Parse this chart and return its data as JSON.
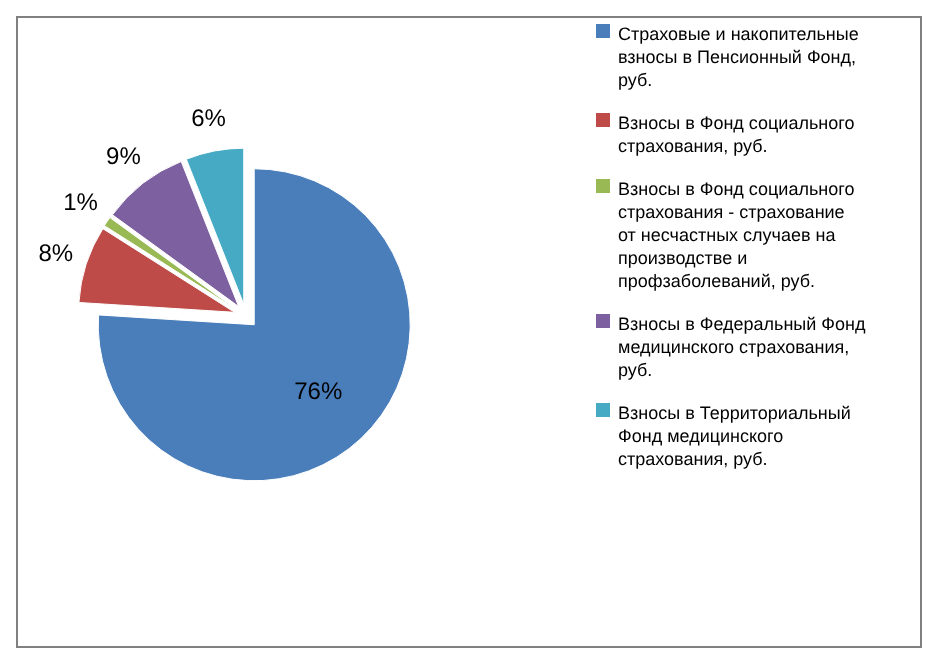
{
  "chart_data": {
    "type": "pie",
    "categories": [
      "Страховые и накопительные взносы в Пенсионный Фонд, руб.",
      "Взносы в Фонд социального страхования, руб.",
      "Взносы в Фонд социального страхования - страхование от несчастных случаев на производстве и профзаболеваний, руб.",
      "Взносы в Федеральный Фонд медицинского страхования, руб.",
      "Взносы в Территориальный Фонд медицинского страхования, руб."
    ],
    "values": [
      76,
      8,
      1,
      9,
      6
    ],
    "colors": [
      "#4a7ebb",
      "#be4b48",
      "#98b954",
      "#7d60a0",
      "#46aac5"
    ],
    "value_labels": [
      "76%",
      "8%",
      "1%",
      "9%",
      "6%"
    ],
    "legend": "right"
  }
}
